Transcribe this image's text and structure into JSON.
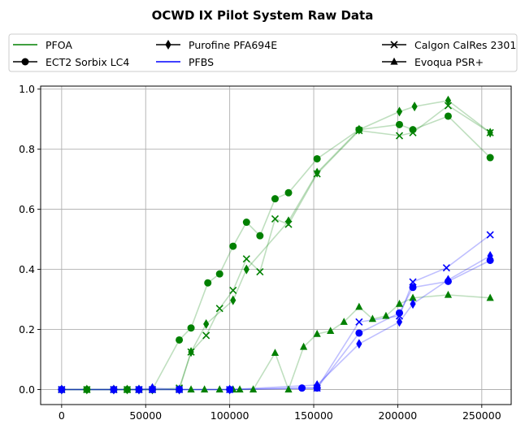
{
  "chart_data": {
    "type": "scatter",
    "title": "OCWD IX Pilot System Raw Data",
    "xlabel": "",
    "ylabel": "",
    "xlim": [
      -12500,
      267500
    ],
    "ylim": [
      -0.05,
      1.01
    ],
    "xticks": [
      0,
      50000,
      100000,
      150000,
      200000,
      250000
    ],
    "xtick_labels": [
      "0",
      "50000",
      "100000",
      "150000",
      "200000",
      "250000"
    ],
    "yticks": [
      0.0,
      0.2,
      0.4,
      0.6,
      0.8,
      1.0
    ],
    "ytick_labels": [
      "0.0",
      "0.2",
      "0.4",
      "0.6",
      "0.8",
      "1.0"
    ],
    "grid": true,
    "legend_position": "above plot",
    "legend": [
      {
        "label": "PFOA",
        "kind": "line",
        "color": "#008000"
      },
      {
        "label": "ECT2 Sorbix LC4",
        "kind": "marker",
        "marker": "circle"
      },
      {
        "label": "Purofine PFA694E",
        "kind": "marker",
        "marker": "thin_diamond"
      },
      {
        "label": "PFBS",
        "kind": "line",
        "color": "#0000ff"
      },
      {
        "label": "Calgon CalRes 2301",
        "kind": "marker",
        "marker": "x"
      },
      {
        "label": "Evoqua PSR+",
        "kind": "marker",
        "marker": "triangle"
      }
    ],
    "series": [
      {
        "contaminant": "PFOA",
        "media": "ECT2 Sorbix LC4",
        "color": "#008000",
        "marker": "circle",
        "x": [
          0,
          15000,
          31000,
          39000,
          46000,
          54000,
          70000,
          77000,
          87000,
          94000,
          102000,
          110000,
          118000,
          127000,
          135000,
          152000,
          177000,
          201000,
          209000,
          230000,
          255000
        ],
        "y": [
          0,
          0,
          0,
          0,
          0,
          0,
          0.165,
          0.205,
          0.355,
          0.385,
          0.477,
          0.557,
          0.512,
          0.635,
          0.655,
          0.768,
          0.865,
          0.882,
          0.865,
          0.91,
          0.772
        ]
      },
      {
        "contaminant": "PFOA",
        "media": "Calgon CalRes 2301",
        "color": "#008000",
        "marker": "x",
        "x": [
          0,
          15000,
          31000,
          39000,
          46000,
          54000,
          70000,
          77000,
          86000,
          94000,
          102000,
          110000,
          118000,
          127000,
          135000,
          152000,
          177000,
          201000,
          209000,
          230000,
          255000
        ],
        "y": [
          0,
          0,
          0,
          0,
          0,
          0,
          0.005,
          0.125,
          0.18,
          0.27,
          0.33,
          0.435,
          0.392,
          0.568,
          0.55,
          0.718,
          0.862,
          0.845,
          0.855,
          0.945,
          0.855
        ]
      },
      {
        "contaminant": "PFOA",
        "media": "Purofine PFA694E",
        "color": "#008000",
        "marker": "thin_diamond",
        "x": [
          0,
          15000,
          31000,
          39000,
          46000,
          54000,
          70000,
          77000,
          86000,
          102000,
          110000,
          135000,
          152000,
          177000,
          201000,
          210000,
          230000,
          255000
        ],
        "y": [
          0,
          0,
          0,
          0,
          0,
          0,
          0,
          0.125,
          0.218,
          0.297,
          0.4,
          0.56,
          0.722,
          0.865,
          0.925,
          0.942,
          0.962,
          0.855
        ]
      },
      {
        "contaminant": "PFOA",
        "media": "Evoqua PSR+",
        "color": "#008000",
        "marker": "triangle",
        "x": [
          0,
          15000,
          31000,
          39000,
          46000,
          54000,
          70000,
          77000,
          85000,
          94000,
          102000,
          106000,
          114000,
          127000,
          135000,
          144000,
          152000,
          160000,
          168000,
          177000,
          185000,
          193000,
          201000,
          209000,
          230000,
          255000
        ],
        "y": [
          0,
          0,
          0,
          0,
          0,
          0,
          0,
          0,
          0,
          0,
          0,
          0,
          0,
          0.122,
          0,
          0.142,
          0.185,
          0.195,
          0.225,
          0.275,
          0.235,
          0.245,
          0.285,
          0.305,
          0.315,
          0.305
        ]
      },
      {
        "contaminant": "PFBS",
        "media": "ECT2 Sorbix LC4",
        "color": "#0000ff",
        "marker": "circle",
        "x": [
          0,
          31000,
          46000,
          54000,
          70000,
          100000,
          143000,
          152000,
          177000,
          201000,
          209000,
          230000,
          255000
        ],
        "y": [
          0,
          0,
          0,
          0,
          0,
          0,
          0.005,
          0.005,
          0.188,
          0.255,
          0.34,
          0.36,
          0.43
        ]
      },
      {
        "contaminant": "PFBS",
        "media": "Calgon CalRes 2301",
        "color": "#0000ff",
        "marker": "x",
        "x": [
          0,
          31000,
          46000,
          54000,
          70000,
          100000,
          152000,
          177000,
          201000,
          209000,
          229000,
          255000
        ],
        "y": [
          0,
          0,
          0,
          0,
          0,
          0,
          0.005,
          0.225,
          0.245,
          0.358,
          0.405,
          0.515
        ]
      },
      {
        "contaminant": "PFBS",
        "media": "Purofine PFA694E",
        "color": "#0000ff",
        "marker": "thin_diamond",
        "x": [
          0,
          31000,
          46000,
          54000,
          70000,
          100000,
          152000,
          177000,
          201000,
          209000,
          230000,
          255000
        ],
        "y": [
          0,
          0,
          0,
          0.005,
          0,
          0,
          0.015,
          0.152,
          0.225,
          0.285,
          0.365,
          0.445
        ]
      }
    ]
  }
}
